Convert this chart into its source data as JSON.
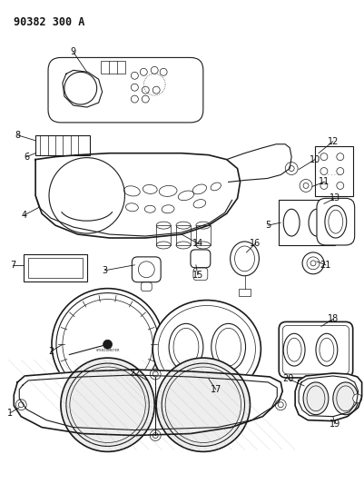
{
  "title": "90382 300 A",
  "bg_color": "#ffffff",
  "line_color": "#1a1a1a",
  "label_color": "#111111",
  "title_fontsize": 8.5,
  "label_fontsize": 7.0
}
